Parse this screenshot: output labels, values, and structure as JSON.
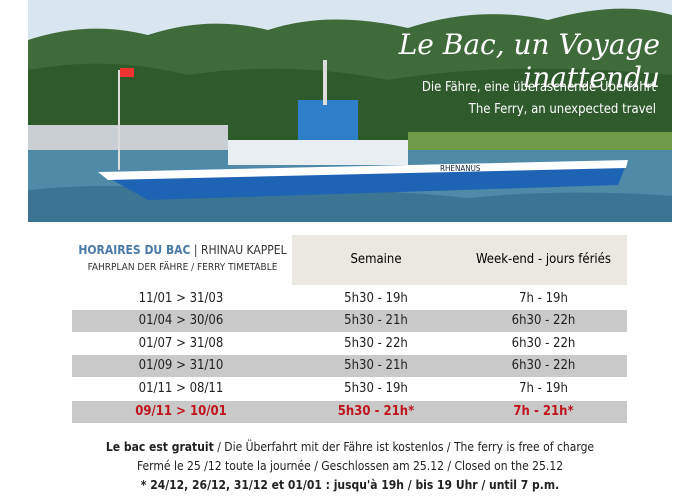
{
  "banner": {
    "title": "Le Bac, un Voyage inattendu",
    "subtitle_de": "Die Fähre, eine überaschende Überfahrt",
    "subtitle_en": "The Ferry, an unexpected travel",
    "ship_name": "RHENANUS"
  },
  "table": {
    "header": {
      "title_bold": "HORAIRES DU BAC",
      "title_rest": " | RHINAU KAPPEL",
      "subtitle": "FAHRPLAN DER FÄHRE / FERRY TIMETABLE",
      "col1": "Semaine",
      "col2": "Week-end - jours fériés"
    },
    "rows": [
      [
        "11/01 > 31/03",
        "5h30 - 19h",
        "7h - 19h"
      ],
      [
        "01/04 > 30/06",
        "5h30 - 21h",
        "6h30 - 22h"
      ],
      [
        "01/07 > 31/08",
        "5h30 - 22h",
        "6h30 - 22h"
      ],
      [
        "01/09 > 31/10",
        "5h30 - 21h",
        "6h30 - 22h"
      ],
      [
        "01/11 > 08/11",
        "5h30 - 19h",
        "7h - 19h"
      ],
      [
        "09/11 > 10/01",
        "5h30 - 21h*",
        "7h - 21h*"
      ]
    ]
  },
  "notes": {
    "free_bold": "Le bac est gratuit",
    "free_rest": " / Die Überfahrt mit der Fähre ist kostenlos / The ferry is free of charge",
    "closed": "Fermé le 25 /12 toute la journée / Geschlossen am 25.12 / Closed on the 25.12",
    "special": "* 24/12, 26/12, 31/12 et 01/01 : jusqu'à 19h / bis 19 Uhr / until 7 p.m."
  }
}
